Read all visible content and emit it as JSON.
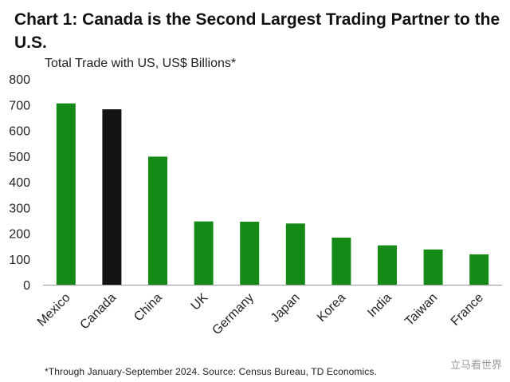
{
  "header": {
    "title": "Chart 1: Canada is the Second Largest Trading Partner to the U.S.",
    "subtitle": "Total Trade with US, US$ Billions*"
  },
  "footnote": "*Through January-September 2024. Source: Census Bureau, TD Economics.",
  "watermark": "立马看世界",
  "colors": {
    "bar": "#168a16",
    "highlight": "#141414",
    "axis": "#999999"
  },
  "chart_data": {
    "type": "bar",
    "title": "Chart 1: Canada is the Second Largest Trading Partner to the U.S.",
    "subtitle": "Total Trade with US, US$ Billions*",
    "categories": [
      "Mexico",
      "Canada",
      "China",
      "UK",
      "Germany",
      "Japan",
      "Korea",
      "India",
      "Taiwan",
      "France"
    ],
    "values": [
      705,
      682,
      498,
      246,
      245,
      238,
      183,
      153,
      137,
      118
    ],
    "highlight": "Canada",
    "ylim": [
      0,
      800
    ],
    "yticks": [
      0,
      100,
      200,
      300,
      400,
      500,
      600,
      700,
      800
    ],
    "grid": false
  }
}
